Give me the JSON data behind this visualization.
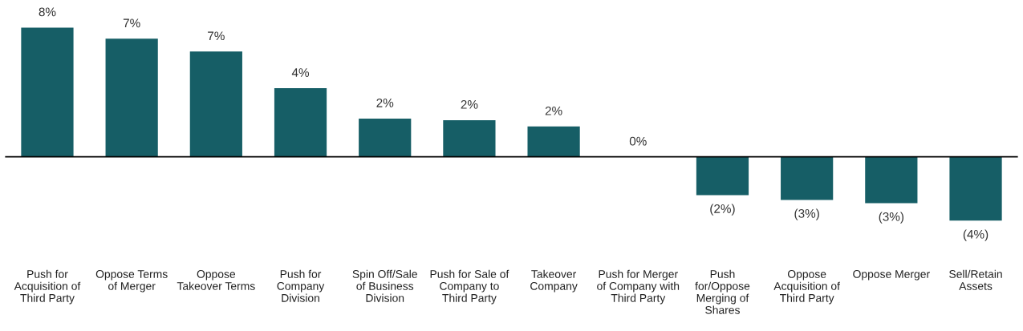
{
  "chart_data": {
    "type": "bar",
    "categories": [
      "Push for\nAcquisition of\nThird Party",
      "Oppose Terms\nof Merger",
      "Oppose\nTakeover Terms",
      "Push for\nCompany\nDivision",
      "Spin Off/Sale\nof Business\nDivision",
      "Push for Sale of\nCompany to\nThird Party",
      "Takeover\nCompany",
      "Push for Merger\nof Company with\nThird Party",
      "Push\nfor/Oppose\nMerging of\nShares",
      "Oppose\nAcquisition of\nThird Party",
      "Oppose Merger",
      "Sell/Retain\nAssets"
    ],
    "values": [
      8.1,
      7.4,
      6.6,
      4.3,
      2.4,
      2.3,
      1.9,
      0.0,
      -2.4,
      -2.7,
      -2.9,
      -4.0
    ],
    "value_labels": [
      "8%",
      "7%",
      "7%",
      "4%",
      "2%",
      "2%",
      "2%",
      "0%",
      "(2%)",
      "(3%)",
      "(3%)",
      "(4%)"
    ],
    "color": "#165e66",
    "grid": false,
    "legend": false
  }
}
